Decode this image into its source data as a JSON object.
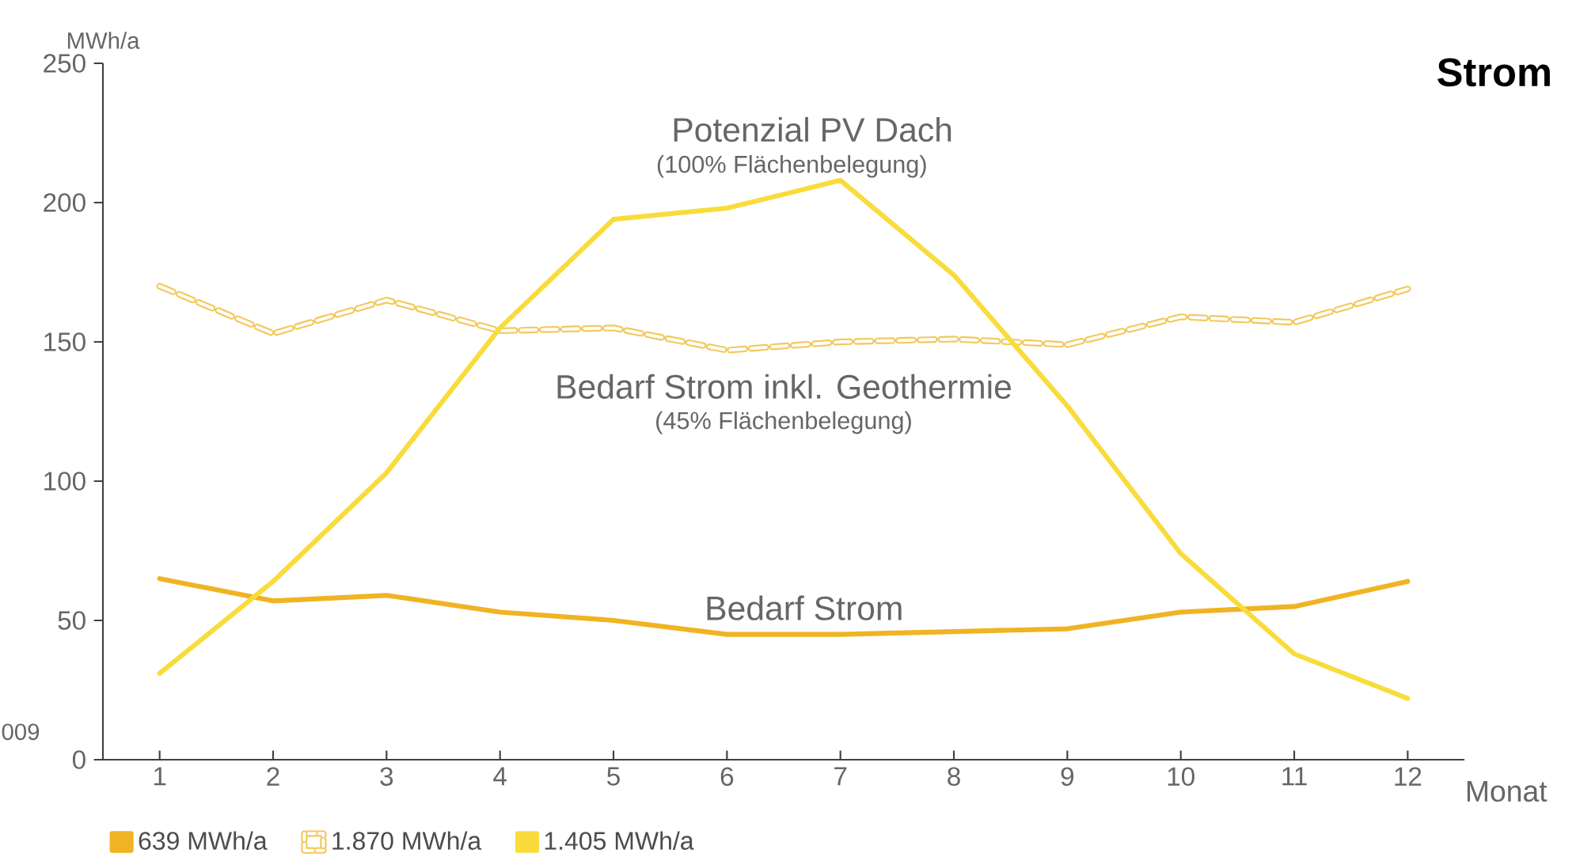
{
  "chart_data": {
    "type": "line",
    "title": "Strom",
    "xlabel": "Monat",
    "ylabel": "MWh/a",
    "x": [
      1,
      2,
      3,
      4,
      5,
      6,
      7,
      8,
      9,
      10,
      11,
      12
    ],
    "xlim": [
      0.5,
      12.5
    ],
    "ylim": [
      0,
      250
    ],
    "xticks": [
      1,
      2,
      3,
      4,
      5,
      6,
      7,
      8,
      9,
      10,
      11,
      12
    ],
    "yticks": [
      0,
      50,
      100,
      150,
      200,
      250
    ],
    "marker": "none",
    "legend": "bottom left",
    "series": [
      {
        "name": "639 MWh/a",
        "color": "#f0b323",
        "line_style": "solid",
        "values": [
          65,
          57,
          59,
          53,
          50,
          45,
          45,
          46,
          47,
          53,
          55,
          64
        ]
      },
      {
        "name": "1.870 MWh/a",
        "color": "#f3c85a",
        "line_style": "dashed",
        "values": [
          170,
          153,
          165,
          154,
          155,
          147,
          150,
          151,
          149,
          159,
          157,
          169
        ]
      },
      {
        "name": "1.405 MWh/a",
        "color": "#f9dc3c",
        "line_style": "solid",
        "values": [
          31,
          64,
          103,
          155,
          194,
          198,
          208,
          174,
          127,
          74,
          38,
          22
        ]
      }
    ],
    "annotations": [
      "Potenzial  PV Dach",
      "(100% Flächenbelegung)",
      "Bedarf Strom inkl. Geothermie",
      "(45% Flächenbelegung)",
      "Bedarf Strom",
      "009"
    ]
  }
}
